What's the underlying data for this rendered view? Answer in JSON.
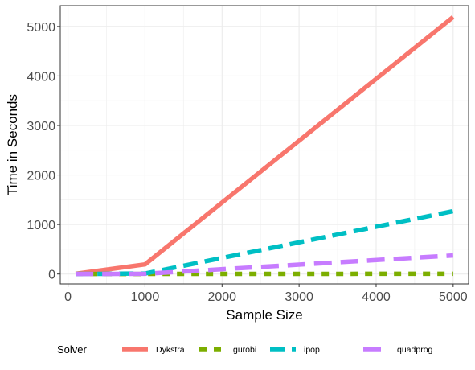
{
  "chart_data": {
    "type": "line",
    "xlabel": "Sample Size",
    "ylabel": "Time in Seconds",
    "xlim": [
      -100,
      5200
    ],
    "ylim": [
      -200,
      5420
    ],
    "x_ticks": [
      0,
      1000,
      2000,
      3000,
      4000,
      5000
    ],
    "y_ticks": [
      0,
      1000,
      2000,
      3000,
      4000,
      5000
    ],
    "x_tick_labels": [
      "0",
      "1000",
      "2000",
      "3000",
      "4000",
      "5000"
    ],
    "y_tick_labels": [
      "0",
      "1000",
      "2000",
      "3000",
      "4000",
      "5000"
    ],
    "grid": true,
    "legend": {
      "title": "Solver",
      "position": "bottom"
    },
    "series": [
      {
        "name": "Dykstra",
        "color": "#F8766D",
        "dash": "solid",
        "x": [
          100,
          1000,
          5000
        ],
        "y": [
          5,
          195,
          5190
        ]
      },
      {
        "name": "gurobi",
        "color": "#7CAE00",
        "dash": "dotted",
        "x": [
          100,
          1000,
          5000
        ],
        "y": [
          0,
          2,
          5
        ]
      },
      {
        "name": "ipop",
        "color": "#00BFC4",
        "dash": "dashed",
        "x": [
          100,
          1000,
          5000
        ],
        "y": [
          0,
          10,
          1270
        ]
      },
      {
        "name": "quadprog",
        "color": "#C77CFF",
        "dash": "longdash",
        "x": [
          100,
          1000,
          5000
        ],
        "y": [
          0,
          5,
          375
        ]
      }
    ]
  }
}
